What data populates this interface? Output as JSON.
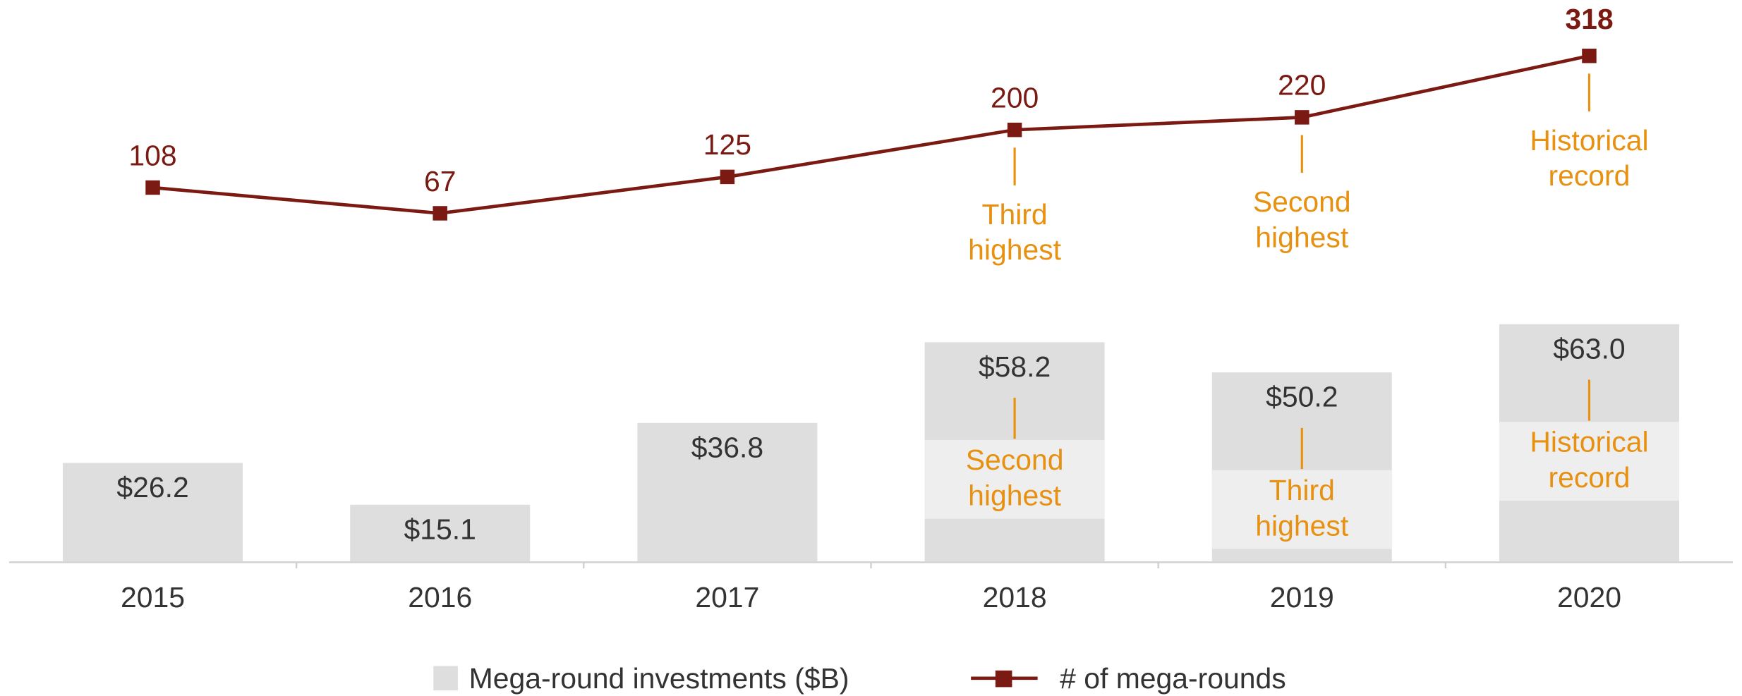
{
  "chart_data": {
    "type": "combo",
    "categories": [
      "2015",
      "2016",
      "2017",
      "2018",
      "2019",
      "2020"
    ],
    "series": [
      {
        "name": "Mega-round investments ($B)",
        "type": "bar",
        "color": "#dedede",
        "values": [
          26.2,
          15.1,
          36.8,
          58.2,
          50.2,
          63.0
        ],
        "value_labels": [
          "$26.2",
          "$15.1",
          "$36.8",
          "$58.2",
          "$50.2",
          "$63.0"
        ]
      },
      {
        "name": "# of mega-rounds",
        "type": "line",
        "axis": "y2",
        "color": "#7a1a12",
        "values": [
          108,
          67,
          125,
          200,
          220,
          318
        ]
      }
    ],
    "ylim": [
      0,
      80
    ],
    "y2lim": [
      0,
      400
    ],
    "annotation_color": "#e8900f",
    "bar_annotations": [
      {
        "category": "2018",
        "lines": [
          "Second",
          "highest"
        ]
      },
      {
        "category": "2019",
        "lines": [
          "Third",
          "highest"
        ]
      },
      {
        "category": "2020",
        "lines": [
          "Historical",
          "record"
        ]
      }
    ],
    "line_annotations": [
      {
        "category": "2018",
        "lines": [
          "Third",
          "highest"
        ]
      },
      {
        "category": "2019",
        "lines": [
          "Second",
          "highest"
        ]
      },
      {
        "category": "2020",
        "lines": [
          "Historical",
          "record"
        ]
      }
    ]
  }
}
